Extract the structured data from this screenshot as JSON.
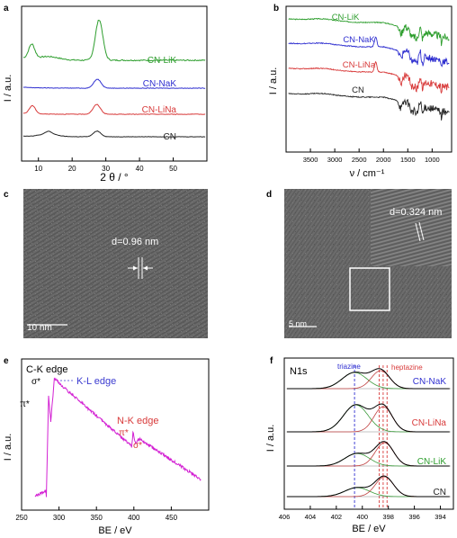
{
  "panels": {
    "a": {
      "letter": "a",
      "ylabel": "I / a.u.",
      "xlabel": "2 θ / °",
      "xticks": [
        "10",
        "20",
        "30",
        "40",
        "50"
      ],
      "series": [
        {
          "name": "CN-LiK",
          "color": "#2e9e2e"
        },
        {
          "name": "CN-NaK",
          "color": "#2f2fd0"
        },
        {
          "name": "CN-LiNa",
          "color": "#d83a3a"
        },
        {
          "name": "CN",
          "color": "#222222"
        }
      ]
    },
    "b": {
      "letter": "b",
      "ylabel": "I / a.u.",
      "xlabel": "ν / cm⁻¹",
      "xticks": [
        "3500",
        "3000",
        "2500",
        "2000",
        "1500",
        "1000"
      ],
      "series": [
        {
          "name": "CN-LiK",
          "color": "#2e9e2e"
        },
        {
          "name": "CN-NaK",
          "color": "#2f2fd0"
        },
        {
          "name": "CN-LiNa",
          "color": "#d83a3a"
        },
        {
          "name": "CN",
          "color": "#222222"
        }
      ]
    },
    "c": {
      "letter": "c",
      "d_label": "d=0.96 nm",
      "scale": "10 nm"
    },
    "d": {
      "letter": "d",
      "d_label": "d=0.324 nm",
      "scale": "5 nm"
    },
    "e": {
      "letter": "e",
      "edge_ck": "C-K edge",
      "edge_kl": "K-L edge",
      "edge_nk": "N-K edge",
      "sigma": "σ*",
      "pi": "π*",
      "ylabel": "I / a.u.",
      "xlabel": "BE / eV",
      "xticks": [
        "250",
        "300",
        "350",
        "400",
        "450"
      ],
      "color": "#d321d3"
    },
    "f": {
      "letter": "f",
      "title": "N1s",
      "triazine": "triazine",
      "heptazine": "heptazine",
      "ylabel": "I / a.u.",
      "xlabel": "BE / eV",
      "xticks": [
        "406",
        "404",
        "402",
        "400",
        "398",
        "396",
        "394"
      ],
      "series": [
        {
          "name": "CN-NaK",
          "color": "#2f2fd0"
        },
        {
          "name": "CN-LiNa",
          "color": "#d83a3a"
        },
        {
          "name": "CN-LiK",
          "color": "#2e9e2e"
        },
        {
          "name": "CN",
          "color": "#222222"
        }
      ]
    }
  },
  "chart_data": [
    {
      "type": "line",
      "title": "",
      "xlabel": "2 θ / °",
      "ylabel": "I / a.u.",
      "xlim": [
        5,
        60
      ],
      "series": [
        {
          "name": "CN-LiK",
          "peaks": [
            {
              "x": 8,
              "h": 0.35
            },
            {
              "x": 28,
              "h": 1.0
            }
          ]
        },
        {
          "name": "CN-NaK",
          "peaks": [
            {
              "x": 27.5,
              "h": 0.55
            }
          ]
        },
        {
          "name": "CN-LiNa",
          "peaks": [
            {
              "x": 8.2,
              "h": 0.5
            },
            {
              "x": 27.3,
              "h": 0.6
            }
          ]
        },
        {
          "name": "CN",
          "peaks": [
            {
              "x": 13,
              "h": 0.2
            },
            {
              "x": 27.4,
              "h": 0.45
            }
          ]
        }
      ]
    },
    {
      "type": "line",
      "title": "",
      "xlabel": "ν / cm⁻¹",
      "ylabel": "I / a.u.",
      "xlim": [
        4000,
        600
      ],
      "series": [
        {
          "name": "CN-LiK"
        },
        {
          "name": "CN-NaK"
        },
        {
          "name": "CN-LiNa"
        },
        {
          "name": "CN"
        }
      ]
    },
    {
      "type": "line",
      "title": "",
      "xlabel": "BE / eV",
      "ylabel": "I / a.u.",
      "xlim": [
        250,
        500
      ],
      "series": [
        {
          "peaks": [
            {
              "x": 285,
              "label": "π*"
            },
            {
              "x": 293,
              "label": "σ*"
            },
            {
              "x": 398,
              "label": "π*"
            },
            {
              "x": 407,
              "label": "σ*"
            }
          ]
        }
      ]
    },
    {
      "type": "line",
      "title": "N1s",
      "xlabel": "BE / eV",
      "ylabel": "I / a.u.",
      "xlim": [
        406,
        393
      ],
      "series": [
        {
          "name": "CN-NaK",
          "peaks": [
            {
              "x": 400.6,
              "label": "triazine"
            },
            {
              "x": 398.6,
              "label": "heptazine"
            }
          ]
        },
        {
          "name": "CN-LiNa",
          "peaks": [
            {
              "x": 400.5
            },
            {
              "x": 398.4
            }
          ]
        },
        {
          "name": "CN-LiK",
          "peaks": [
            {
              "x": 400.4
            },
            {
              "x": 398.3
            }
          ]
        },
        {
          "name": "CN",
          "peaks": [
            {
              "x": 400.4
            },
            {
              "x": 398.3
            }
          ]
        }
      ]
    }
  ]
}
